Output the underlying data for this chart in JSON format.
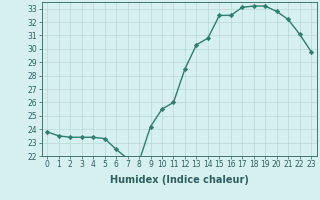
{
  "title": "",
  "xlabel": "Humidex (Indice chaleur)",
  "ylabel": "",
  "x": [
    0,
    1,
    2,
    3,
    4,
    5,
    6,
    7,
    8,
    9,
    10,
    11,
    12,
    13,
    14,
    15,
    16,
    17,
    18,
    19,
    20,
    21,
    22,
    23
  ],
  "y": [
    23.8,
    23.5,
    23.4,
    23.4,
    23.4,
    23.3,
    22.5,
    21.8,
    21.6,
    24.2,
    25.5,
    26.0,
    28.5,
    30.3,
    30.8,
    32.5,
    32.5,
    33.1,
    33.2,
    33.2,
    32.8,
    32.2,
    31.1,
    29.8
  ],
  "line_color": "#2e7d6e",
  "marker": "D",
  "marker_size": 2.2,
  "bg_color": "#d6f0ef",
  "grid_color": "#b8d8d6",
  "ylim": [
    22,
    33.5
  ],
  "yticks": [
    22,
    23,
    24,
    25,
    26,
    27,
    28,
    29,
    30,
    31,
    32,
    33
  ],
  "xticks": [
    0,
    1,
    2,
    3,
    4,
    5,
    6,
    7,
    8,
    9,
    10,
    11,
    12,
    13,
    14,
    15,
    16,
    17,
    18,
    19,
    20,
    21,
    22,
    23
  ],
  "tick_fontsize": 5.5,
  "xlabel_fontsize": 7,
  "line_width": 1.0,
  "marker_color": "#2e7d6e",
  "tick_color": "#2e6060",
  "spine_color": "#2e6060"
}
